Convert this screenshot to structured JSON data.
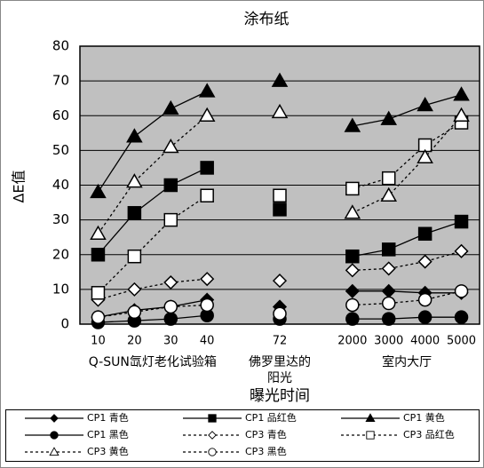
{
  "chart_data": {
    "type": "line",
    "title": "涂布纸",
    "y_label": "ΔE值",
    "x_label": "曝光时间",
    "categories": [
      "10",
      "20",
      "30",
      "40",
      null,
      "72",
      null,
      "2000",
      "3000",
      "4000",
      "5000"
    ],
    "x_groups": [
      [
        "Q-SUN氙灯老化试验箱"
      ],
      [
        "佛罗里达的",
        "阳光"
      ],
      [
        "室内大厅"
      ]
    ],
    "ylim": [
      0,
      80
    ],
    "yticks": [
      0,
      10,
      20,
      30,
      40,
      50,
      60,
      70,
      80
    ],
    "grid": true,
    "legend": "bottom",
    "background": "#c0c0c0",
    "series": [
      {
        "name": "CP1 青色",
        "color": "#000000",
        "marker": "diamond",
        "filled": true,
        "dashed": false,
        "values": [
          2,
          4,
          5,
          7,
          null,
          5,
          null,
          9.5,
          9.5,
          9,
          9
        ]
      },
      {
        "name": "CP1 品红色",
        "color": "#000000",
        "marker": "square",
        "filled": true,
        "dashed": false,
        "values": [
          20,
          32,
          40,
          45,
          null,
          33,
          null,
          19.5,
          21.5,
          26,
          29.5
        ]
      },
      {
        "name": "CP1 黄色",
        "color": "#000000",
        "marker": "triangle",
        "filled": true,
        "dashed": false,
        "values": [
          38,
          54,
          62,
          67,
          null,
          70,
          null,
          57,
          59,
          63,
          66
        ]
      },
      {
        "name": "CP1 黑色",
        "color": "#000000",
        "marker": "circle",
        "filled": true,
        "dashed": false,
        "values": [
          0.5,
          1,
          1.5,
          2.5,
          null,
          1.5,
          null,
          1.5,
          1.5,
          2,
          2
        ]
      },
      {
        "name": "CP3 青色",
        "color": "#000000",
        "marker": "diamond",
        "filled": false,
        "dashed": true,
        "values": [
          7,
          10,
          12,
          13,
          null,
          12.5,
          null,
          15.5,
          16,
          18,
          21
        ]
      },
      {
        "name": "CP3 品红色",
        "color": "#000000",
        "marker": "square",
        "filled": false,
        "dashed": true,
        "values": [
          9,
          19.5,
          30,
          37,
          null,
          37,
          null,
          39,
          42,
          51.5,
          58
        ]
      },
      {
        "name": "CP3 黄色",
        "color": "#000000",
        "marker": "triangle",
        "filled": false,
        "dashed": true,
        "values": [
          26,
          41,
          51,
          60,
          null,
          61,
          null,
          32,
          37,
          48,
          60
        ]
      },
      {
        "name": "CP3 黑色",
        "color": "#000000",
        "marker": "circle",
        "filled": false,
        "dashed": true,
        "values": [
          2,
          3.5,
          5,
          5.5,
          null,
          3,
          null,
          5.5,
          6,
          7,
          9.5
        ]
      }
    ]
  }
}
